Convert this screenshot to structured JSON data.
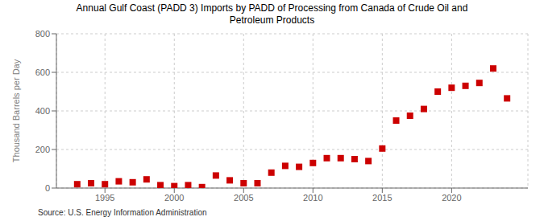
{
  "chart_data": {
    "type": "scatter",
    "title": "Annual Gulf Coast (PADD 3) Imports by PADD of Processing from Canada of Crude Oil and\nPetroleum Products",
    "y_label": "Thousand Barrels per Day",
    "annotations": [
      "Source: U.S. Energy Information Administration"
    ],
    "x": [
      1993,
      1994,
      1995,
      1996,
      1997,
      1998,
      1999,
      2000,
      2001,
      2002,
      2003,
      2004,
      2005,
      2006,
      2007,
      2008,
      2009,
      2010,
      2011,
      2012,
      2013,
      2014,
      2015,
      2016,
      2017,
      2018,
      2019,
      2020,
      2021,
      2022,
      2023,
      2024
    ],
    "values": [
      20,
      25,
      20,
      35,
      30,
      45,
      15,
      10,
      15,
      5,
      65,
      40,
      25,
      25,
      80,
      115,
      110,
      130,
      155,
      155,
      150,
      140,
      205,
      350,
      375,
      410,
      500,
      520,
      530,
      545,
      620,
      465
    ],
    "color": "#cc0000",
    "marker": "square",
    "xlim": [
      1991.5,
      2025.5
    ],
    "xticks": [
      1995,
      2000,
      2005,
      2010,
      2015,
      2020
    ],
    "ylim": [
      0,
      800
    ],
    "yticks": [
      0,
      200,
      400,
      600,
      800
    ],
    "grid": true
  }
}
